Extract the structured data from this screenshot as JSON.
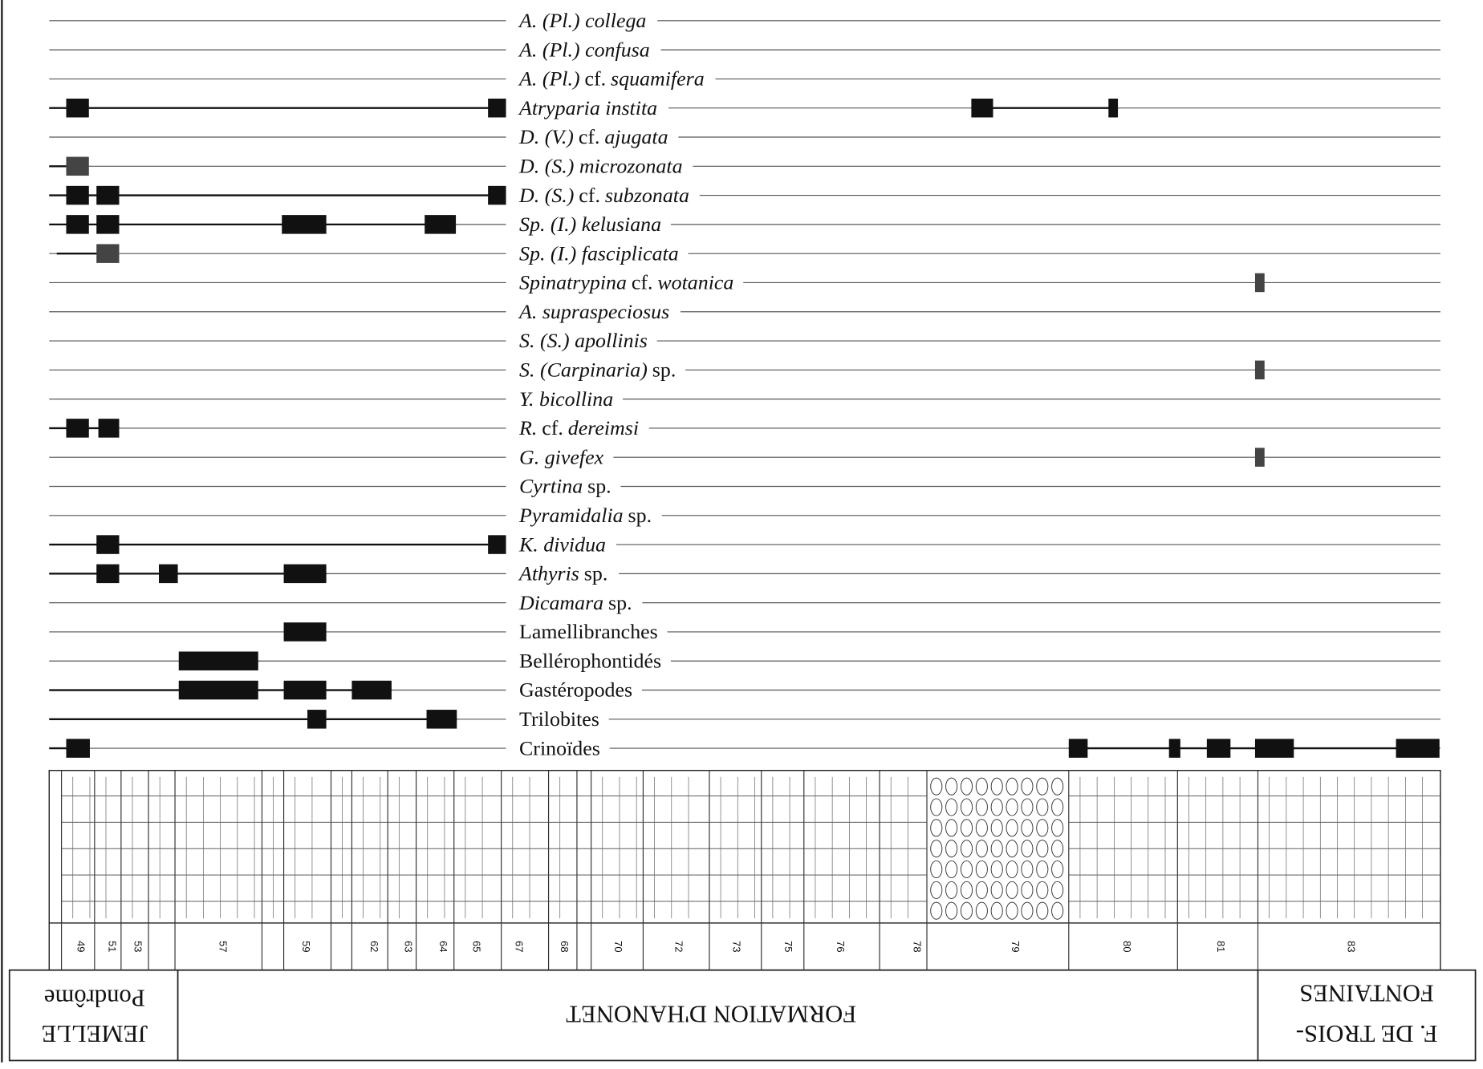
{
  "taxa": [
    {
      "parts": [
        "A. (Pl.) collega"
      ],
      "roman": []
    },
    {
      "parts": [
        "A. (Pl.) confusa"
      ],
      "roman": []
    },
    {
      "parts": [
        "A. (Pl.)",
        "cf.",
        "squamifera"
      ],
      "roman": [
        1
      ]
    },
    {
      "parts": [
        "Atryparia instita"
      ],
      "roman": []
    },
    {
      "parts": [
        "D. (V.)",
        "cf.",
        "ajugata"
      ],
      "roman": [
        1
      ]
    },
    {
      "parts": [
        "D. (S.) microzonata"
      ],
      "roman": []
    },
    {
      "parts": [
        "D. (S.)",
        "cf.",
        "subzonata"
      ],
      "roman": [
        1
      ]
    },
    {
      "parts": [
        "Sp. (I.) kelusiana"
      ],
      "roman": []
    },
    {
      "parts": [
        "Sp. (I.) fasciplicata"
      ],
      "roman": []
    },
    {
      "parts": [
        "Spinatrypina",
        "cf.",
        "wotanica"
      ],
      "roman": [
        1
      ]
    },
    {
      "parts": [
        "A. supraspeciosus"
      ],
      "roman": []
    },
    {
      "parts": [
        "S. (S.) apollinis"
      ],
      "roman": []
    },
    {
      "parts": [
        "S. (Carpinaria)",
        "sp."
      ],
      "roman": [
        1
      ]
    },
    {
      "parts": [
        "Y. bicollina"
      ],
      "roman": []
    },
    {
      "parts": [
        "R.",
        "cf.",
        "dereimsi"
      ],
      "roman": [
        1
      ]
    },
    {
      "parts": [
        "G. givefex"
      ],
      "roman": []
    },
    {
      "parts": [
        "Cyrtina",
        "sp."
      ],
      "roman": [
        1
      ]
    },
    {
      "parts": [
        "Pyramidalia",
        "sp."
      ],
      "roman": [
        1
      ]
    },
    {
      "parts": [
        "K. dividua"
      ],
      "roman": []
    },
    {
      "parts": [
        "Athyris",
        "sp."
      ],
      "roman": [
        1
      ]
    },
    {
      "parts": [
        "Dicamara",
        "sp."
      ],
      "roman": [
        1
      ]
    },
    {
      "parts": [
        "Lamellibranches"
      ],
      "roman": [
        0
      ]
    },
    {
      "parts": [
        "Bellérophontidés"
      ],
      "roman": [
        0
      ]
    },
    {
      "parts": [
        "Gastéropodes"
      ],
      "roman": [
        0
      ]
    },
    {
      "parts": [
        "Trilobites"
      ],
      "roman": [
        0
      ]
    },
    {
      "parts": [
        "Crinoïdes"
      ],
      "roman": [
        0
      ]
    }
  ],
  "beds": [
    "49",
    "51",
    "53",
    "57",
    "59",
    "62",
    "63",
    "64",
    "65",
    "67",
    "68",
    "70",
    "72",
    "73",
    "75",
    "76",
    "78",
    "79",
    "80",
    "81",
    "83"
  ],
  "formations": {
    "jemelle": "JEMELLE",
    "pondrome": "Pondrôme",
    "hanonet": "FORMATION D'HANONET",
    "trois_fontaines_1": "F.  DE TROIS-",
    "trois_fontaines_2": "FONTAINES"
  }
}
